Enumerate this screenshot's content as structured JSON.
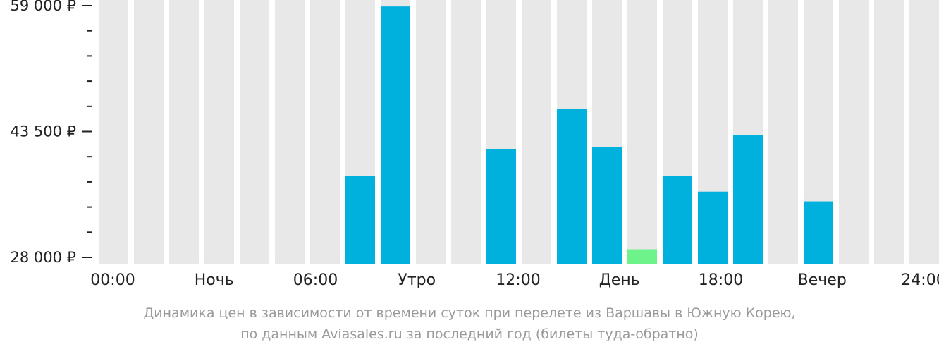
{
  "chart_data": {
    "type": "bar",
    "categories": [
      "00:00",
      "01:00",
      "02:00",
      "03:00",
      "04:00",
      "05:00",
      "06:00",
      "07:00",
      "08:00",
      "09:00",
      "10:00",
      "11:00",
      "12:00",
      "13:00",
      "14:00",
      "15:00",
      "16:00",
      "17:00",
      "18:00",
      "19:00",
      "20:00",
      "21:00",
      "22:00",
      "23:00"
    ],
    "values": [
      null,
      null,
      null,
      null,
      null,
      null,
      null,
      38000,
      58900,
      null,
      null,
      41300,
      null,
      46300,
      41600,
      29000,
      38000,
      36100,
      43100,
      null,
      34900,
      null,
      null,
      null
    ],
    "highlight_index": 15,
    "ylim": [
      28000,
      59000
    ],
    "yticks": [
      {
        "value": 28000,
        "label": "28 000 ₽"
      },
      {
        "value": 43500,
        "label": "43 500 ₽"
      },
      {
        "value": 59000,
        "label": "59 000 ₽"
      }
    ],
    "minor_ticks_per_interval": 5,
    "x_labels": [
      "00:00",
      "Ночь",
      "06:00",
      "Утро",
      "12:00",
      "День",
      "18:00",
      "Вечер",
      "24:00"
    ],
    "grid": false,
    "colors": {
      "bar": "#00b0dd",
      "highlight": "#6ef28a",
      "background_column": "#e8e8e8",
      "axis": "#222222"
    }
  },
  "caption": {
    "line1": "Динамика цен в зависимости от времени суток при перелете из Варшавы в Южную Корею,",
    "line2": "по данным Aviasales.ru за последний год (билеты туда-обратно)"
  }
}
